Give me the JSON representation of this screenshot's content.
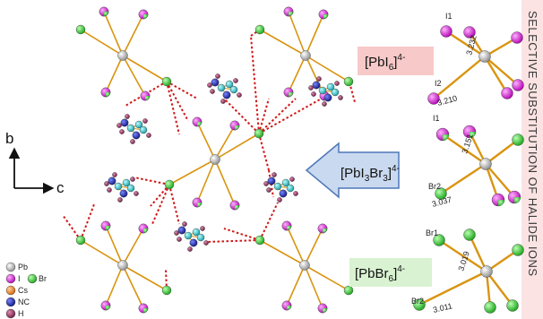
{
  "labels": {
    "pbi6": {
      "pre": "[PbI",
      "n": "6",
      "charge": "4-"
    },
    "mixed": {
      "pre": "[PbI",
      "n1": "3",
      "mid": "Br",
      "n2": "3",
      "charge": "4-"
    },
    "pbbr6": {
      "pre": "[PbBr",
      "n": "6",
      "charge": "4-"
    }
  },
  "axes": {
    "b": "b",
    "c": "c"
  },
  "legend": [
    {
      "label": "Pb",
      "color": "#c8c8c8"
    },
    {
      "label": "I",
      "color": "#dd33dd",
      "extra": "Br",
      "extra_color": "#33cc33"
    },
    {
      "label": "Cs",
      "color": "#f08020"
    },
    {
      "label": "NC",
      "color": "#1a2aa0"
    },
    {
      "label": "H",
      "color": "#8a2a55"
    },
    {
      "label": "N",
      "color": "#22bfc6"
    }
  ],
  "side_title": "SELECTIVE SUBSTITUTION OF HALIDE IONS",
  "colors": {
    "pbi6_bg": "#f7c9c9",
    "pbbr6_bg": "#d9f2d2",
    "arrow_fill": "#c9d9ef",
    "arrow_stroke": "#4f77b8",
    "bond": "#d99410",
    "hbond": "#d01818",
    "side_bg": "#fbe3e3"
  },
  "insets": {
    "top": {
      "a1": "I1",
      "a2": "I2",
      "d1": "3.232",
      "d2": "3.210"
    },
    "mid": {
      "a1": "I1",
      "a2": "Br2",
      "d1": "3.151",
      "d2": "3.037"
    },
    "bottom": {
      "a1": "Br1",
      "a2": "Br2",
      "d1": "3.019",
      "d2": "3.011"
    }
  }
}
